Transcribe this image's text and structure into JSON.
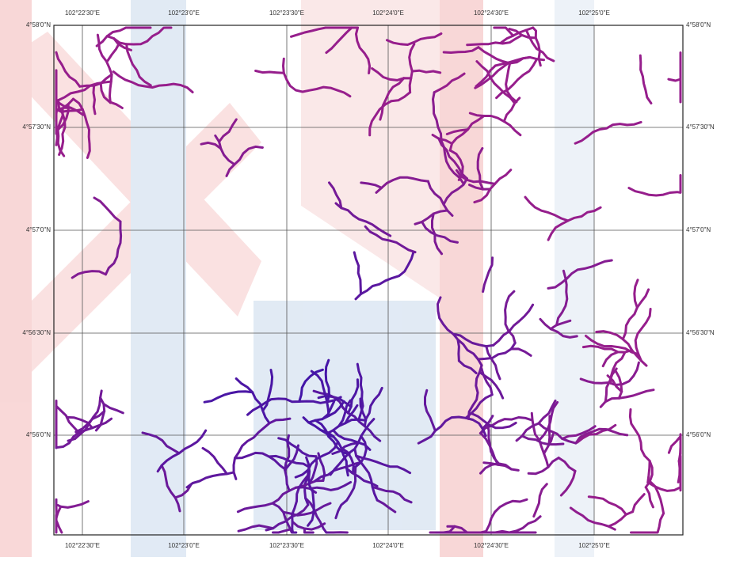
{
  "map": {
    "x_labels": [
      "102°22'30\"E",
      "102°23'0\"E",
      "102°23'30\"E",
      "102°24'0\"E",
      "102°24'30\"E",
      "102°25'0\"E"
    ],
    "y_labels": [
      "4°58'0\"N",
      "4°57'30\"N",
      "4°57'0\"N",
      "4°56'30\"N",
      "4°56'0\"N"
    ]
  }
}
